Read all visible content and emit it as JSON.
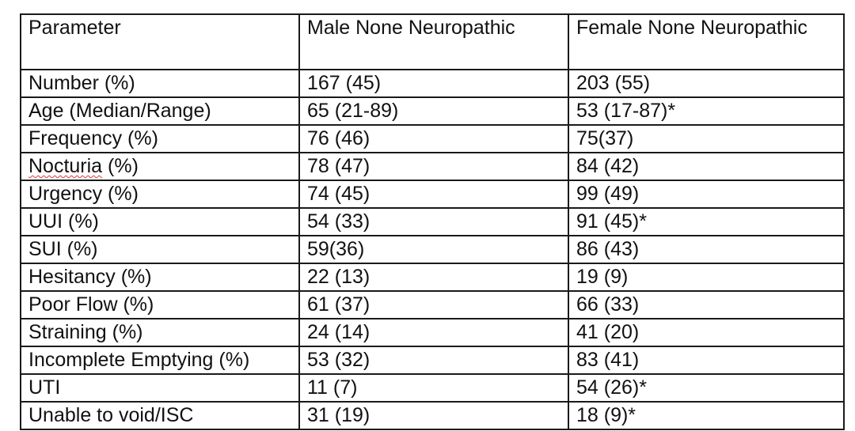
{
  "table": {
    "headers": [
      "Parameter",
      "Male None Neuropathic",
      "Female None Neuropathic"
    ],
    "rows": [
      {
        "parameter": "Number (%)",
        "male": "167 (45)",
        "female": "203 (55)"
      },
      {
        "parameter": "Age (Median/Range)",
        "male": "65 (21-89)",
        "female": "53 (17-87)*"
      },
      {
        "parameter": "Frequency (%)",
        "male": "76 (46)",
        "female": "75(37)"
      },
      {
        "parameter_word": "Nocturia",
        "parameter_suffix": " (%)",
        "male": "78 (47)",
        "female": "84 (42)"
      },
      {
        "parameter": "Urgency (%)",
        "male": "74 (45)",
        "female": "99 (49)"
      },
      {
        "parameter": "UUI (%)",
        "male": "54 (33)",
        "female": "91 (45)*"
      },
      {
        "parameter": "SUI (%)",
        "male": "59(36)",
        "female": "86 (43)"
      },
      {
        "parameter": "Hesitancy (%)",
        "male": "22 (13)",
        "female": "19 (9)"
      },
      {
        "parameter": "Poor Flow (%)",
        "male": "61 (37)",
        "female": "66 (33)"
      },
      {
        "parameter": "Straining (%)",
        "male": "24 (14)",
        "female": "41 (20)"
      },
      {
        "parameter": "Incomplete Emptying (%)",
        "male": "53 (32)",
        "female": "83 (41)"
      },
      {
        "parameter": "UTI",
        "male": "11 (7)",
        "female": "54 (26)*"
      },
      {
        "parameter": "Unable to void/ISC",
        "male": "31 (19)",
        "female": "18 (9)*"
      }
    ]
  }
}
